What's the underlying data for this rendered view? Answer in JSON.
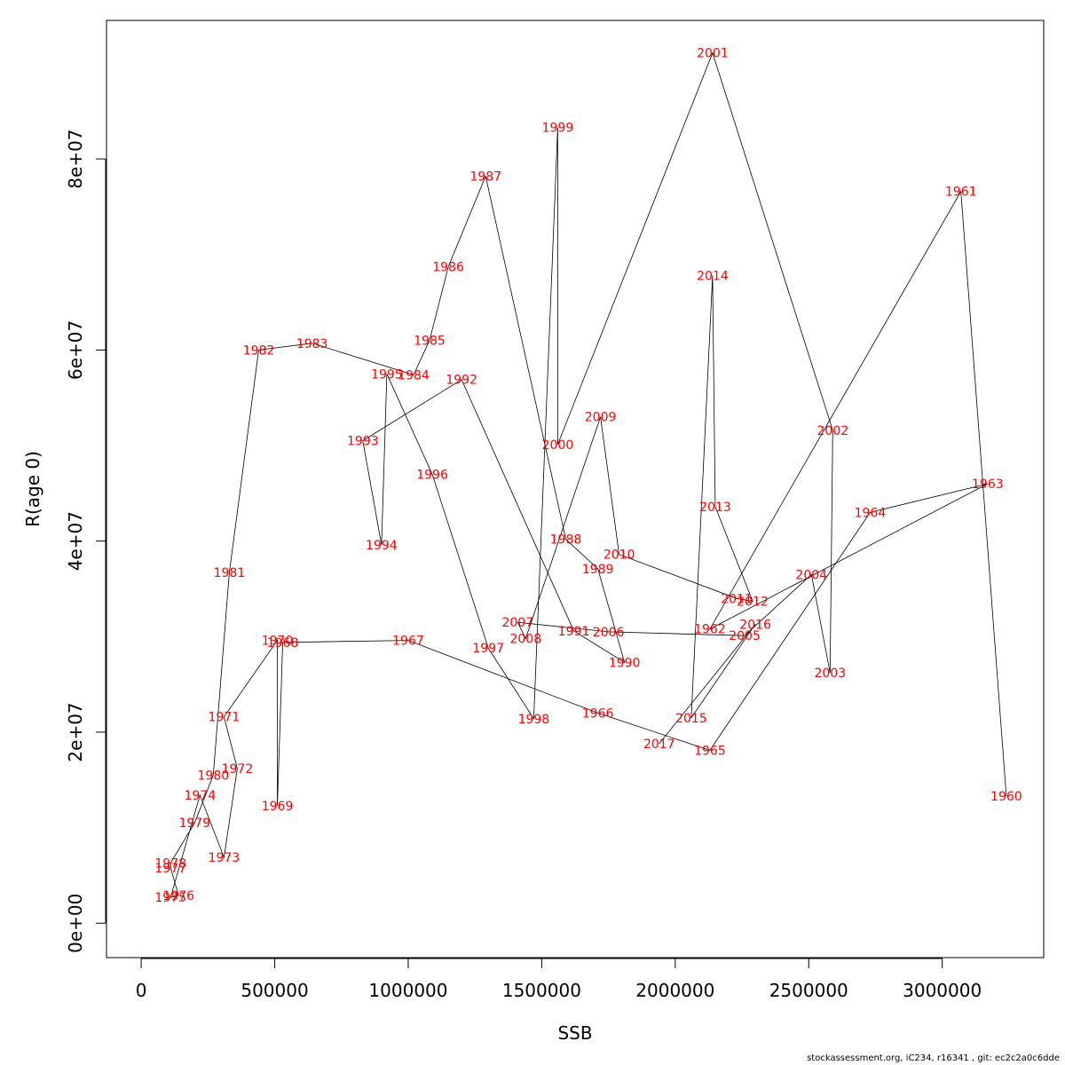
{
  "chart_data": {
    "type": "scatter",
    "connected": true,
    "xlabel": "SSB",
    "ylabel": "R(age 0)",
    "xlim": [
      -130000,
      3380000
    ],
    "ylim": [
      -3600000,
      94500000
    ],
    "xticks": [
      0,
      500000,
      1000000,
      1500000,
      2000000,
      2500000,
      3000000
    ],
    "xtick_labels": [
      "0",
      "500000",
      "1000000",
      "1500000",
      "2000000",
      "2500000",
      "3000000"
    ],
    "yticks": [
      0,
      20000000,
      40000000,
      60000000,
      80000000
    ],
    "ytick_labels": [
      "0e+00",
      "2e+07",
      "4e+07",
      "6e+07",
      "8e+07"
    ],
    "points": [
      {
        "label": "1960",
        "x": 3240000,
        "y": 13300000
      },
      {
        "label": "1961",
        "x": 3070000,
        "y": 76600000
      },
      {
        "label": "1962",
        "x": 2130000,
        "y": 30800000
      },
      {
        "label": "1963",
        "x": 3170000,
        "y": 46000000
      },
      {
        "label": "1964",
        "x": 2730000,
        "y": 43000000
      },
      {
        "label": "1965",
        "x": 2130000,
        "y": 18100000
      },
      {
        "label": "1966",
        "x": 1710000,
        "y": 22000000
      },
      {
        "label": "1967",
        "x": 1000000,
        "y": 29600000
      },
      {
        "label": "1968",
        "x": 530000,
        "y": 29400000
      },
      {
        "label": "1969",
        "x": 510000,
        "y": 12300000
      },
      {
        "label": "1970",
        "x": 510000,
        "y": 29600000
      },
      {
        "label": "1971",
        "x": 310000,
        "y": 21600000
      },
      {
        "label": "1972",
        "x": 360000,
        "y": 16200000
      },
      {
        "label": "1973",
        "x": 310000,
        "y": 6900000
      },
      {
        "label": "1974",
        "x": 220000,
        "y": 13400000
      },
      {
        "label": "1975",
        "x": 110000,
        "y": 2700000
      },
      {
        "label": "1976",
        "x": 140000,
        "y": 2900000
      },
      {
        "label": "1977",
        "x": 110000,
        "y": 5800000
      },
      {
        "label": "1978",
        "x": 110000,
        "y": 6300000
      },
      {
        "label": "1979",
        "x": 200000,
        "y": 10500000
      },
      {
        "label": "1980",
        "x": 270000,
        "y": 15500000
      },
      {
        "label": "1981",
        "x": 330000,
        "y": 36700000
      },
      {
        "label": "1982",
        "x": 440000,
        "y": 60000000
      },
      {
        "label": "1983",
        "x": 640000,
        "y": 60700000
      },
      {
        "label": "1984",
        "x": 1020000,
        "y": 57400000
      },
      {
        "label": "1985",
        "x": 1080000,
        "y": 61000000
      },
      {
        "label": "1986",
        "x": 1150000,
        "y": 68700000
      },
      {
        "label": "1987",
        "x": 1290000,
        "y": 78200000
      },
      {
        "label": "1988",
        "x": 1590000,
        "y": 40200000
      },
      {
        "label": "1989",
        "x": 1710000,
        "y": 37100000
      },
      {
        "label": "1990",
        "x": 1810000,
        "y": 27300000
      },
      {
        "label": "1991",
        "x": 1620000,
        "y": 30600000
      },
      {
        "label": "1992",
        "x": 1200000,
        "y": 56900000
      },
      {
        "label": "1993",
        "x": 830000,
        "y": 50500000
      },
      {
        "label": "1994",
        "x": 900000,
        "y": 39600000
      },
      {
        "label": "1995",
        "x": 920000,
        "y": 57500000
      },
      {
        "label": "1996",
        "x": 1090000,
        "y": 47000000
      },
      {
        "label": "1997",
        "x": 1300000,
        "y": 28800000
      },
      {
        "label": "1998",
        "x": 1470000,
        "y": 21400000
      },
      {
        "label": "1999",
        "x": 1560000,
        "y": 83300000
      },
      {
        "label": "2000",
        "x": 1560000,
        "y": 50100000
      },
      {
        "label": "2001",
        "x": 2140000,
        "y": 91100000
      },
      {
        "label": "2002",
        "x": 2590000,
        "y": 51600000
      },
      {
        "label": "2003",
        "x": 2580000,
        "y": 26200000
      },
      {
        "label": "2004",
        "x": 2510000,
        "y": 36500000
      },
      {
        "label": "2005",
        "x": 2260000,
        "y": 30100000
      },
      {
        "label": "2006",
        "x": 1750000,
        "y": 30500000
      },
      {
        "label": "2007",
        "x": 1410000,
        "y": 31500000
      },
      {
        "label": "2008",
        "x": 1440000,
        "y": 29800000
      },
      {
        "label": "2009",
        "x": 1720000,
        "y": 53000000
      },
      {
        "label": "2010",
        "x": 1790000,
        "y": 38600000
      },
      {
        "label": "2011",
        "x": 2230000,
        "y": 34000000
      },
      {
        "label": "2012",
        "x": 2290000,
        "y": 33700000
      },
      {
        "label": "2013",
        "x": 2150000,
        "y": 43600000
      },
      {
        "label": "2014",
        "x": 2140000,
        "y": 67800000
      },
      {
        "label": "2015",
        "x": 2060000,
        "y": 21500000
      },
      {
        "label": "2016",
        "x": 2300000,
        "y": 31300000
      },
      {
        "label": "2017",
        "x": 1940000,
        "y": 18800000
      }
    ]
  },
  "footer": "stockassessment.org, iC234, r16341 , git: ec2c2a0c6dde"
}
